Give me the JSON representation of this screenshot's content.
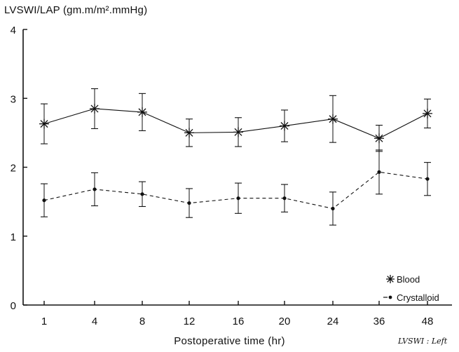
{
  "chart_data": {
    "type": "line",
    "ylabel": "LVSWI/LAP (gm.m/m².mmHg)",
    "xlabel": "Postoperative time (hr)",
    "categories": [
      "1",
      "4",
      "8",
      "12",
      "16",
      "20",
      "24",
      "36",
      "48"
    ],
    "ylim": [
      0,
      4
    ],
    "yticks": [
      "0",
      "1",
      "2",
      "3",
      "4"
    ],
    "grid": false,
    "legend_position": "bottom-right",
    "series": [
      {
        "name": "Blood",
        "marker": "asterisk",
        "line_style": "solid",
        "values": [
          2.63,
          2.85,
          2.8,
          2.5,
          2.51,
          2.6,
          2.7,
          2.42,
          2.78
        ],
        "error": [
          0.29,
          0.29,
          0.27,
          0.2,
          0.21,
          0.23,
          0.34,
          0.19,
          0.21
        ]
      },
      {
        "name": "Crystalloid",
        "marker": "dot",
        "line_style": "dashed",
        "values": [
          1.52,
          1.68,
          1.61,
          1.48,
          1.55,
          1.55,
          1.4,
          1.93,
          1.83
        ],
        "error": [
          0.24,
          0.24,
          0.18,
          0.21,
          0.22,
          0.2,
          0.24,
          0.32,
          0.24
        ]
      }
    ]
  },
  "annotation": "LVSWI : Left"
}
